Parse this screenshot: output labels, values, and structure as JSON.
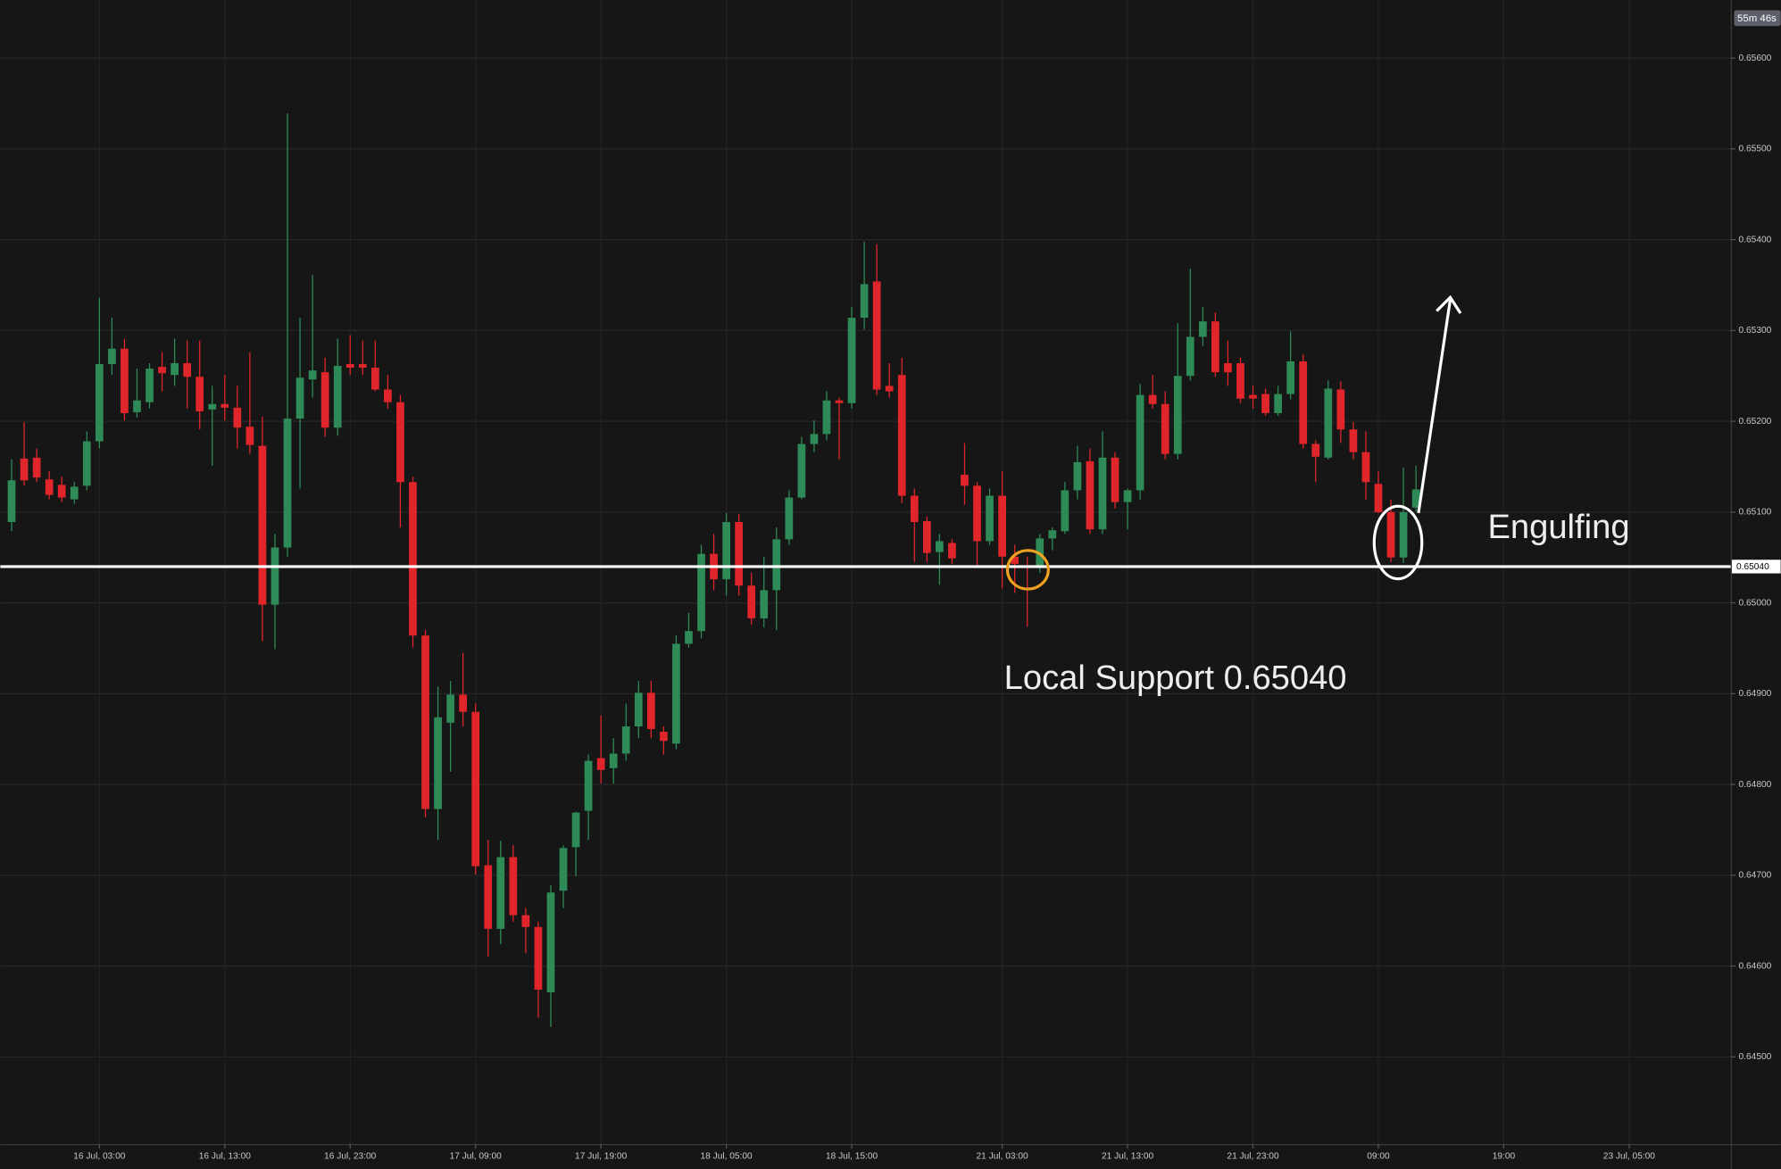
{
  "chart_data": {
    "type": "candlestick",
    "open": [
      0.65089,
      0.65159,
      0.6516,
      0.65136,
      0.6513,
      0.65114,
      0.65129,
      0.65178,
      0.65263,
      0.6528,
      0.6521,
      0.65221,
      0.6526,
      0.65251,
      0.65264,
      0.65249,
      0.65213,
      0.65219,
      0.65215,
      0.65194,
      0.65173,
      0.64998,
      0.65061,
      0.65203,
      0.65246,
      0.65254,
      0.65193,
      0.65263,
      0.65263,
      0.65259,
      0.65235,
      0.65221,
      0.65133,
      0.64964,
      0.64773,
      0.64868,
      0.64899,
      0.6488,
      0.64711,
      0.64641,
      0.6472,
      0.64656,
      0.64643,
      0.64571,
      0.64683,
      0.64731,
      0.64771,
      0.64829,
      0.64818,
      0.64834,
      0.64864,
      0.64901,
      0.64858,
      0.64845,
      0.64955,
      0.64969,
      0.65054,
      0.65026,
      0.65089,
      0.65019,
      0.64983,
      0.65014,
      0.6507,
      0.65116,
      0.65175,
      0.65186,
      0.65223,
      0.6522,
      0.65314,
      0.65354,
      0.65239,
      0.65251,
      0.65118,
      0.6509,
      0.65056,
      0.65066,
      0.65141,
      0.65129,
      0.65068,
      0.65118,
      0.65051,
      0.65041,
      0.65041,
      0.65071,
      0.65079,
      0.65124,
      0.65156,
      0.65081,
      0.6516,
      0.65111,
      0.65124,
      0.65229,
      0.65219,
      0.65164,
      0.6525,
      0.65293,
      0.6531,
      0.65264,
      0.65264,
      0.65229,
      0.6523,
      0.65209,
      0.6523,
      0.65266,
      0.65175,
      0.6516,
      0.65235,
      0.65191,
      0.65166,
      0.65131,
      0.651,
      0.6505,
      0.65105
    ],
    "high": [
      0.65158,
      0.65199,
      0.6517,
      0.65145,
      0.65139,
      0.65133,
      0.65189,
      0.65336,
      0.65314,
      0.65291,
      0.65258,
      0.65264,
      0.65276,
      0.65291,
      0.65289,
      0.65289,
      0.65239,
      0.65251,
      0.65239,
      0.65276,
      0.65205,
      0.65076,
      0.65539,
      0.65314,
      0.65361,
      0.6527,
      0.65291,
      0.65295,
      0.65289,
      0.65289,
      0.65251,
      0.65229,
      0.65139,
      0.6497,
      0.64908,
      0.64914,
      0.64945,
      0.64889,
      0.64739,
      0.64738,
      0.64733,
      0.64664,
      0.64649,
      0.64689,
      0.64733,
      0.6477,
      0.64833,
      0.64876,
      0.64851,
      0.64889,
      0.64914,
      0.64914,
      0.64864,
      0.64964,
      0.64989,
      0.65064,
      0.65076,
      0.65099,
      0.65098,
      0.65033,
      0.65051,
      0.65083,
      0.65124,
      0.65183,
      0.65201,
      0.65233,
      0.65226,
      0.65326,
      0.65398,
      0.65395,
      0.65264,
      0.6527,
      0.65126,
      0.65095,
      0.65076,
      0.6507,
      0.65176,
      0.65133,
      0.65126,
      0.65145,
      0.65064,
      0.65051,
      0.65076,
      0.65083,
      0.65133,
      0.65173,
      0.6517,
      0.65189,
      0.65166,
      0.65126,
      0.65241,
      0.65251,
      0.65233,
      0.65308,
      0.65368,
      0.65326,
      0.6532,
      0.65289,
      0.6527,
      0.65239,
      0.65236,
      0.65239,
      0.65299,
      0.65274,
      0.65179,
      0.65245,
      0.65244,
      0.65199,
      0.65189,
      0.65145,
      0.65114,
      0.65149,
      0.65151
    ],
    "low": [
      0.65079,
      0.65129,
      0.65133,
      0.65114,
      0.65111,
      0.65109,
      0.65124,
      0.6517,
      0.65251,
      0.65201,
      0.65204,
      0.65214,
      0.65233,
      0.65239,
      0.65214,
      0.65191,
      0.65151,
      0.65201,
      0.6517,
      0.65164,
      0.64958,
      0.64949,
      0.65051,
      0.65126,
      0.65226,
      0.65183,
      0.65184,
      0.65251,
      0.65251,
      0.65233,
      0.65214,
      0.65083,
      0.64951,
      0.64764,
      0.64739,
      0.64814,
      0.64864,
      0.64701,
      0.6461,
      0.64624,
      0.64649,
      0.64614,
      0.64543,
      0.64533,
      0.64664,
      0.64699,
      0.64739,
      0.64801,
      0.64801,
      0.64826,
      0.64851,
      0.64851,
      0.64833,
      0.64839,
      0.64951,
      0.64961,
      0.65014,
      0.65008,
      0.65008,
      0.64976,
      0.64973,
      0.6497,
      0.65064,
      0.65114,
      0.65166,
      0.65179,
      0.65158,
      0.65214,
      0.65301,
      0.65229,
      0.65226,
      0.6511,
      0.65045,
      0.65045,
      0.6502,
      0.65043,
      0.65108,
      0.65039,
      0.65064,
      0.65016,
      0.65011,
      0.64974,
      0.65033,
      0.65058,
      0.65076,
      0.65114,
      0.65076,
      0.65076,
      0.65104,
      0.65081,
      0.65114,
      0.65214,
      0.65158,
      0.65158,
      0.65245,
      0.65283,
      0.65249,
      0.65239,
      0.6522,
      0.65214,
      0.65206,
      0.65206,
      0.65224,
      0.6517,
      0.65133,
      0.65158,
      0.65176,
      0.65158,
      0.65114,
      0.65099,
      0.65045,
      0.65044,
      0.65101
    ],
    "close": [
      0.65135,
      0.65135,
      0.65138,
      0.65119,
      0.65116,
      0.65128,
      0.65178,
      0.65263,
      0.6528,
      0.65209,
      0.65223,
      0.65258,
      0.65253,
      0.65264,
      0.65249,
      0.65211,
      0.65219,
      0.65215,
      0.65193,
      0.65174,
      0.64998,
      0.65061,
      0.65203,
      0.65248,
      0.65256,
      0.65193,
      0.65261,
      0.65259,
      0.65259,
      0.65235,
      0.65221,
      0.65133,
      0.64964,
      0.64773,
      0.64874,
      0.64899,
      0.6488,
      0.6471,
      0.64641,
      0.6472,
      0.64656,
      0.64643,
      0.64574,
      0.64681,
      0.6473,
      0.64769,
      0.64826,
      0.64816,
      0.64834,
      0.64864,
      0.64901,
      0.64861,
      0.64848,
      0.64955,
      0.64969,
      0.65054,
      0.65026,
      0.65089,
      0.65019,
      0.64983,
      0.65014,
      0.6507,
      0.65116,
      0.65175,
      0.65186,
      0.65223,
      0.6522,
      0.65314,
      0.65351,
      0.65235,
      0.65233,
      0.65118,
      0.65089,
      0.65055,
      0.65068,
      0.65049,
      0.65129,
      0.65068,
      0.65118,
      0.65051,
      0.65043,
      0.65039,
      0.65071,
      0.6508,
      0.65124,
      0.65155,
      0.65081,
      0.6516,
      0.65111,
      0.65124,
      0.65229,
      0.65219,
      0.65164,
      0.6525,
      0.65293,
      0.6531,
      0.65254,
      0.65254,
      0.65225,
      0.65225,
      0.65209,
      0.6523,
      0.65266,
      0.65175,
      0.65161,
      0.65236,
      0.65191,
      0.65166,
      0.65133,
      0.651,
      0.6505,
      0.651,
      0.65125
    ],
    "up_color": "#2e8b57",
    "down_color": "#e0262b",
    "xlim": [
      -0.9,
      137.1
    ],
    "xticks": [
      {
        "value": 7,
        "label": "16 Jul, 03:00"
      },
      {
        "value": 17,
        "label": "16 Jul, 13:00"
      },
      {
        "value": 27,
        "label": "16 Jul, 23:00"
      },
      {
        "value": 37,
        "label": "17 Jul, 09:00"
      },
      {
        "value": 47,
        "label": "17 Jul, 19:00"
      },
      {
        "value": 57,
        "label": "18 Jul, 05:00"
      },
      {
        "value": 67,
        "label": "18 Jul, 15:00"
      },
      {
        "value": 79,
        "label": "21 Jul, 03:00"
      },
      {
        "value": 89,
        "label": "21 Jul, 13:00"
      },
      {
        "value": 99,
        "label": "21 Jul, 23:00"
      },
      {
        "value": 109,
        "label": "09:00"
      },
      {
        "value": 119,
        "label": "19:00"
      },
      {
        "value": 129,
        "label": "23 Jul, 05:00"
      }
    ],
    "ylim": [
      0.64404,
      0.65664
    ],
    "yticks": [
      {
        "value": 0.645,
        "label": "0.64500"
      },
      {
        "value": 0.646,
        "label": "0.64600"
      },
      {
        "value": 0.647,
        "label": "0.64700"
      },
      {
        "value": 0.648,
        "label": "0.64800"
      },
      {
        "value": 0.649,
        "label": "0.64900"
      },
      {
        "value": 0.65,
        "label": "0.65000"
      },
      {
        "value": 0.651,
        "label": "0.65100"
      },
      {
        "value": 0.652,
        "label": "0.65200"
      },
      {
        "value": 0.653,
        "label": "0.65300"
      },
      {
        "value": 0.654,
        "label": "0.65400"
      },
      {
        "value": 0.655,
        "label": "0.65500"
      },
      {
        "value": 0.656,
        "label": "0.65600"
      }
    ],
    "grid": true,
    "support": {
      "value": 0.6504,
      "label": "0.65040"
    },
    "annotations": [
      "Local Support 0.65040",
      "Engulfing"
    ],
    "countdown": "55m 46s"
  }
}
